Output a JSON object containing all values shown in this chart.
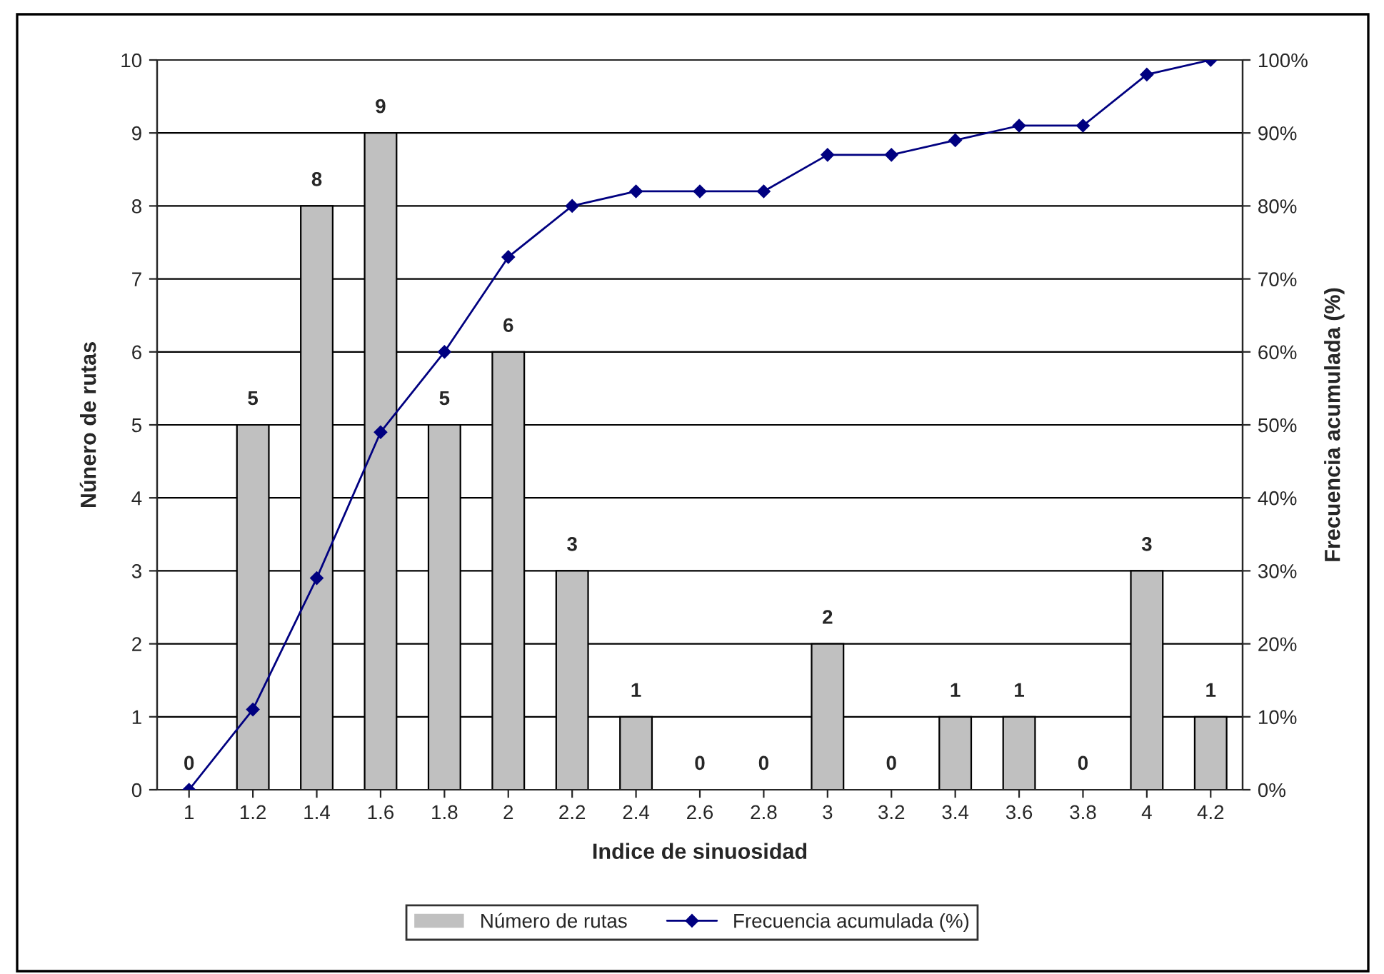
{
  "chart_data": {
    "type": "bar",
    "categories": [
      "1",
      "1.2",
      "1.4",
      "1.6",
      "1.8",
      "2",
      "2.2",
      "2.4",
      "2.6",
      "2.8",
      "3",
      "3.2",
      "3.4",
      "3.6",
      "3.8",
      "4",
      "4.2"
    ],
    "xlabel": "Indice de sinuosidad",
    "ylabel": "Núnero de rutas",
    "y2label": "Frecuencia acumulada (%)",
    "series": [
      {
        "name": "Número de rutas",
        "color": "#c0c0c0",
        "values": [
          0,
          5,
          8,
          9,
          5,
          6,
          3,
          1,
          0,
          0,
          2,
          0,
          1,
          1,
          0,
          3,
          1
        ],
        "value_labels": [
          "0",
          "5",
          "8",
          "9",
          "5",
          "6",
          "3",
          "1",
          "0",
          "0",
          "2",
          "0",
          "1",
          "1",
          "0",
          "3",
          "1"
        ]
      },
      {
        "name": "Frecuencia acumulada (%)",
        "type": "line",
        "axis": "y2",
        "color": "#000080",
        "marker": "diamond",
        "values": [
          0,
          11,
          29,
          49,
          60,
          73,
          80,
          82,
          82,
          82,
          87,
          87,
          89,
          91,
          91,
          98,
          100
        ]
      }
    ],
    "ylim": [
      0,
      10
    ],
    "yticks": [
      0,
      1,
      2,
      3,
      4,
      5,
      6,
      7,
      8,
      9,
      10
    ],
    "y2lim": [
      0,
      100
    ],
    "y2ticks": [
      {
        "value": 0,
        "label": "0%"
      },
      {
        "value": 10,
        "label": "10%"
      },
      {
        "value": 20,
        "label": "20%"
      },
      {
        "value": 30,
        "label": "30%"
      },
      {
        "value": 40,
        "label": "40%"
      },
      {
        "value": 50,
        "label": "50%"
      },
      {
        "value": 60,
        "label": "60%"
      },
      {
        "value": 70,
        "label": "70%"
      },
      {
        "value": 80,
        "label": "80%"
      },
      {
        "value": 90,
        "label": "90%"
      },
      {
        "value": 100,
        "label": "100%"
      }
    ],
    "grid": "y",
    "legend": "bottom"
  }
}
